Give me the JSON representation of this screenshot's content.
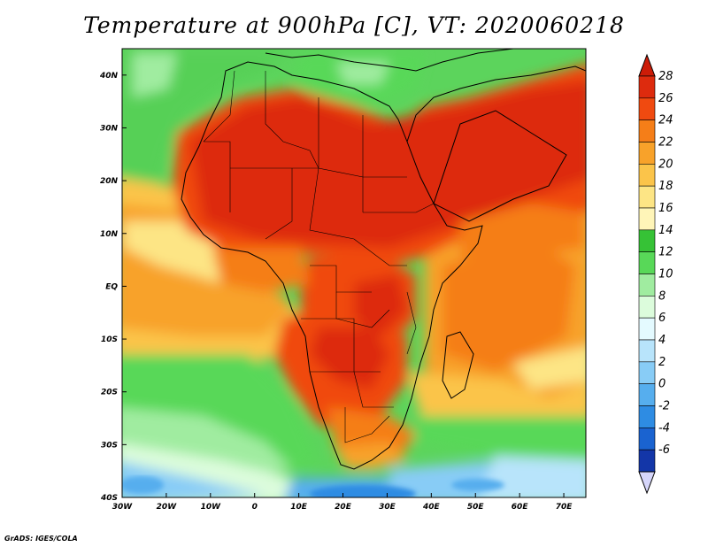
{
  "title": "Temperature at 900hPa [C], VT: 2020060218",
  "credit": "GrADS: IGES/COLA",
  "map": {
    "region": "Africa",
    "variable": "Temperature at 900hPa",
    "units": "C",
    "valid_time": "2020060218",
    "lon_range": [
      -30,
      75
    ],
    "lat_range": [
      -40,
      45
    ],
    "lon_ticks": [
      {
        "v": -30,
        "label": "30W"
      },
      {
        "v": -20,
        "label": "20W"
      },
      {
        "v": -10,
        "label": "10W"
      },
      {
        "v": 0,
        "label": "0"
      },
      {
        "v": 10,
        "label": "10E"
      },
      {
        "v": 20,
        "label": "20E"
      },
      {
        "v": 30,
        "label": "30E"
      },
      {
        "v": 40,
        "label": "40E"
      },
      {
        "v": 50,
        "label": "50E"
      },
      {
        "v": 60,
        "label": "60E"
      },
      {
        "v": 70,
        "label": "70E"
      }
    ],
    "lat_ticks": [
      {
        "v": 40,
        "label": "40N"
      },
      {
        "v": 30,
        "label": "30N"
      },
      {
        "v": 20,
        "label": "20N"
      },
      {
        "v": 10,
        "label": "10N"
      },
      {
        "v": 0,
        "label": "EQ"
      },
      {
        "v": -10,
        "label": "10S"
      },
      {
        "v": -20,
        "label": "20S"
      },
      {
        "v": -30,
        "label": "30S"
      },
      {
        "v": -40,
        "label": "40S"
      }
    ]
  },
  "colorbar": {
    "labels": [
      "28",
      "26",
      "24",
      "22",
      "20",
      "18",
      "16",
      "14",
      "12",
      "10",
      "8",
      "6",
      "4",
      "2",
      "0",
      "-2",
      "-4",
      "-6"
    ],
    "colors": [
      "#dd2b0e",
      "#f04a10",
      "#f57e18",
      "#f8a22a",
      "#fbc44a",
      "#fde585",
      "#fff5b8",
      "#36c236",
      "#58d858",
      "#a0eca0",
      "#dcfcdc",
      "#e4faff",
      "#b8e4fb",
      "#88ccf6",
      "#56aeee",
      "#2e8ce3",
      "#1a63d0",
      "#1336a8",
      "#0e1a86"
    ],
    "top_color": "#cc1c08",
    "bottom_color": "#d6d6fa"
  }
}
